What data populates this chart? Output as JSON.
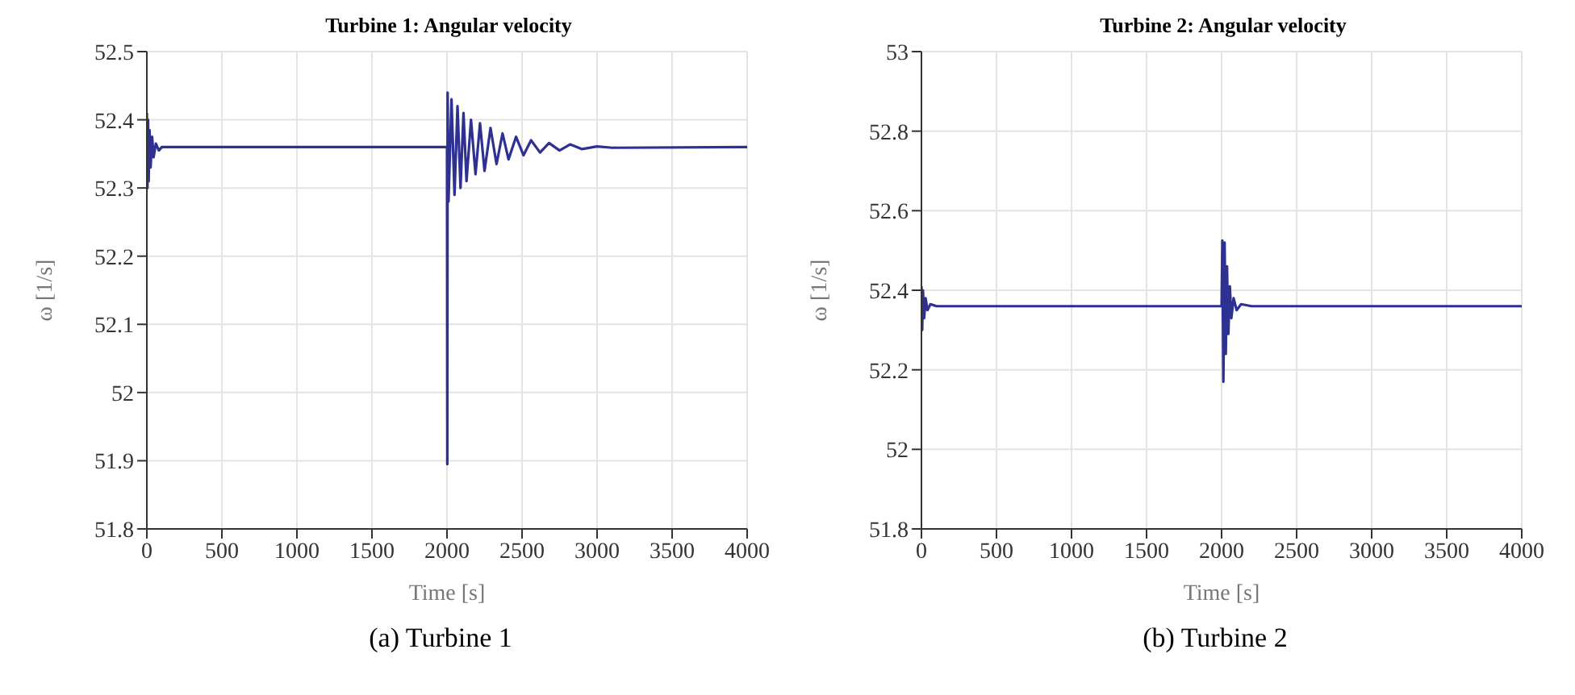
{
  "chart_data": [
    {
      "type": "line",
      "title": "Turbine 1:  Angular velocity",
      "xlabel": "Time [s]",
      "ylabel": "ω [1/s]",
      "annotations": [
        "(a) Turbine 1"
      ],
      "xlim": [
        0,
        4000
      ],
      "xticks": [
        0,
        500,
        1000,
        1500,
        2000,
        2500,
        3000,
        3500,
        4000
      ],
      "ylim": [
        51.8,
        52.5
      ],
      "yticks": [
        51.8,
        51.9,
        52,
        52.1,
        52.2,
        52.3,
        52.4,
        52.5
      ],
      "grid": true,
      "series": [
        {
          "color": "#2e3192",
          "x": [
            0,
            4,
            8,
            12,
            18,
            25,
            35,
            45,
            60,
            80,
            100,
            2000,
            2002,
            2004,
            2010,
            2030,
            2050,
            2070,
            2090,
            2110,
            2130,
            2160,
            2190,
            2220,
            2250,
            2290,
            2330,
            2370,
            2410,
            2460,
            2510,
            2560,
            2620,
            2680,
            2750,
            2820,
            2900,
            3000,
            3100,
            4000
          ],
          "values": [
            52.41,
            52.3,
            52.4,
            52.31,
            52.385,
            52.33,
            52.375,
            52.345,
            52.365,
            52.355,
            52.36,
            52.36,
            51.895,
            52.44,
            52.28,
            52.43,
            52.29,
            52.42,
            52.3,
            52.41,
            52.31,
            52.4,
            52.32,
            52.395,
            52.325,
            52.388,
            52.335,
            52.38,
            52.342,
            52.375,
            52.348,
            52.37,
            52.352,
            52.366,
            52.355,
            52.364,
            52.357,
            52.361,
            52.359,
            52.36
          ]
        }
      ]
    },
    {
      "type": "line",
      "title": "Turbine 2:  Angular velocity",
      "xlabel": "Time [s]",
      "ylabel": "ω [1/s]",
      "annotations": [
        "(b) Turbine 2"
      ],
      "xlim": [
        0,
        4000
      ],
      "xticks": [
        0,
        500,
        1000,
        1500,
        2000,
        2500,
        3000,
        3500,
        4000
      ],
      "ylim": [
        51.8,
        53
      ],
      "yticks": [
        51.8,
        52,
        52.2,
        52.4,
        52.6,
        52.8,
        53
      ],
      "grid": true,
      "series": [
        {
          "color": "#2e3192",
          "x": [
            0,
            5,
            10,
            18,
            28,
            40,
            60,
            100,
            2000,
            2005,
            2012,
            2020,
            2028,
            2036,
            2045,
            2055,
            2065,
            2080,
            2100,
            2130,
            2200,
            4000
          ],
          "values": [
            52.41,
            52.3,
            52.4,
            52.33,
            52.38,
            52.35,
            52.365,
            52.36,
            52.36,
            52.525,
            52.17,
            52.52,
            52.24,
            52.46,
            52.29,
            52.41,
            52.33,
            52.38,
            52.35,
            52.365,
            52.36,
            52.36
          ]
        }
      ]
    }
  ]
}
